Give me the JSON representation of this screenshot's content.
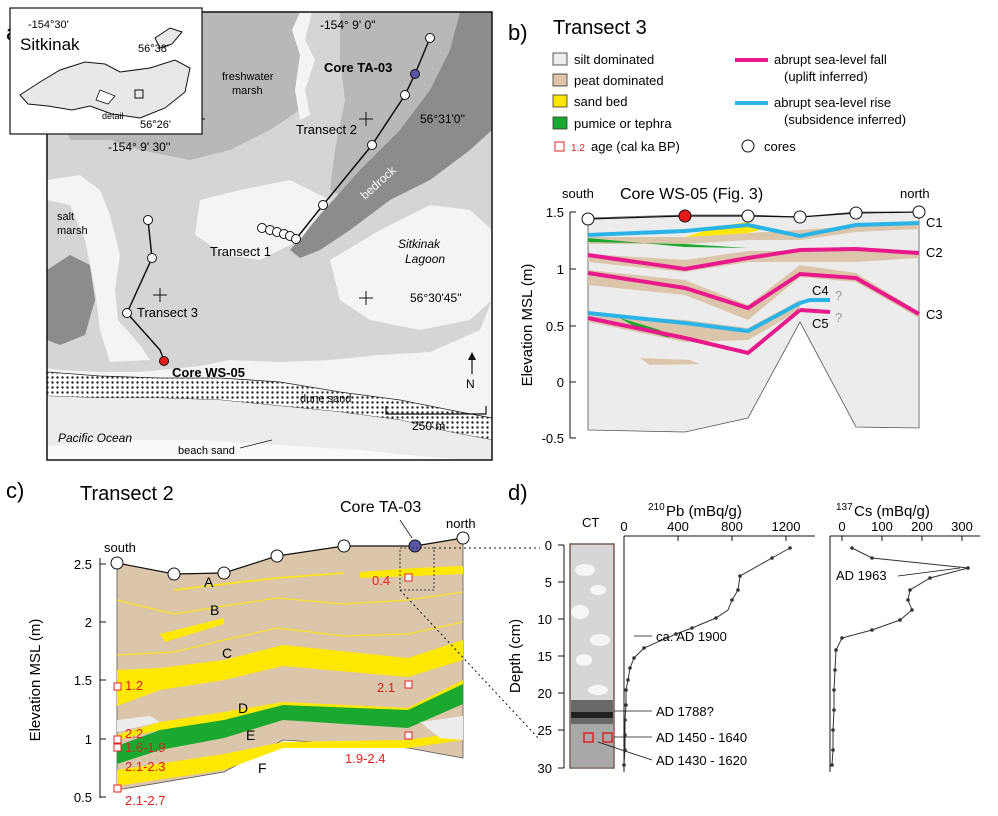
{
  "colors": {
    "silt": "#ececec",
    "peat": "#dcc6ab",
    "sand": "#ffe800",
    "pumice": "#1aa830",
    "fall": "#e8198b",
    "rise": "#2bb3e8",
    "age": "#e02020",
    "core_red": "#e41b1b",
    "core_blue": "#5a55a4",
    "map_light": "#d5d5d5",
    "map_mid": "#b8b8b8",
    "map_dark": "#8c8c8c",
    "water": "#f4f4f4"
  },
  "panel_a": {
    "label": "a)",
    "inset": {
      "lon": "-154°30'",
      "name": "Sitkinak",
      "lat1": "56°38'",
      "lat2": "56°26'",
      "detail": "detail"
    },
    "coords": {
      "lon_top": "-154° 9' 0''",
      "lon_left": "-154° 9' 30''",
      "lat_mid": "56°31'0''",
      "lat_low": "56°30'45''"
    },
    "labels": {
      "freshwater": [
        "freshwater",
        "marsh"
      ],
      "salt": [
        "salt",
        "marsh"
      ],
      "bedrock": "bedrock",
      "lagoon": [
        "Sitkinak",
        "Lagoon"
      ],
      "dune": "dune sand",
      "beach": "beach sand",
      "ocean": "Pacific Ocean",
      "transect1": "Transect 1",
      "transect2": "Transect 2",
      "transect3": "Transect 3",
      "core_ta": "Core TA-03",
      "core_ws": "Core WS-05",
      "scale": "250 m",
      "north": "N"
    }
  },
  "panel_b": {
    "label": "b)",
    "title": "Transect 3",
    "legend": {
      "silt": "silt dominated",
      "peat": "peat dominated",
      "sand": "sand bed",
      "pumice": "pumice or tephra",
      "age_num": "1.2",
      "age": "age (cal ka BP)",
      "cores": "cores",
      "fall1": "abrupt sea-level fall",
      "fall2": "(uplift inferred)",
      "rise1": "abrupt sea-level rise",
      "rise2": "(subsidence inferred)"
    },
    "south": "south",
    "north": "north",
    "core_label": "Core WS-05 (Fig. 3)",
    "ylabel": "Elevation MSL (m)",
    "yticks": [
      "1.5",
      "1",
      "0.5",
      "0",
      "-0.5"
    ],
    "contacts": [
      "C1",
      "C2",
      "C3",
      "C4",
      "C5"
    ],
    "query": "?"
  },
  "panel_c": {
    "label": "c)",
    "title": "Transect 2",
    "south": "south",
    "north": "north",
    "core_label": "Core TA-03",
    "ylabel": "Elevation MSL (m)",
    "yticks": [
      "2.5",
      "2",
      "1.5",
      "1",
      "0.5"
    ],
    "units": [
      "A",
      "B",
      "C",
      "D",
      "E",
      "F"
    ],
    "ages": [
      "0.4",
      "1.2",
      "2.1",
      "2.2",
      "1.6-1.9",
      "2.1-2.3",
      "1.9-2.4",
      "2.1-2.7"
    ]
  },
  "panel_d": {
    "label": "d)",
    "ct": "CT",
    "pb_title_sup": "210",
    "pb_title": "Pb (mBq/g)",
    "cs_title_sup": "137",
    "cs_title": "Cs (mBq/g)",
    "ylabel": "Depth (cm)",
    "depth_ticks": [
      "0",
      "5",
      "10",
      "15",
      "20",
      "25",
      "30"
    ],
    "pb_ticks": [
      "0",
      "400",
      "800",
      "1200"
    ],
    "cs_ticks": [
      "0",
      "100",
      "200",
      "300"
    ],
    "annotations": [
      "ca. AD 1900",
      "AD 1788?",
      "AD 1450 - 1640",
      "AD 1430 - 1620",
      "AD 1963"
    ]
  }
}
